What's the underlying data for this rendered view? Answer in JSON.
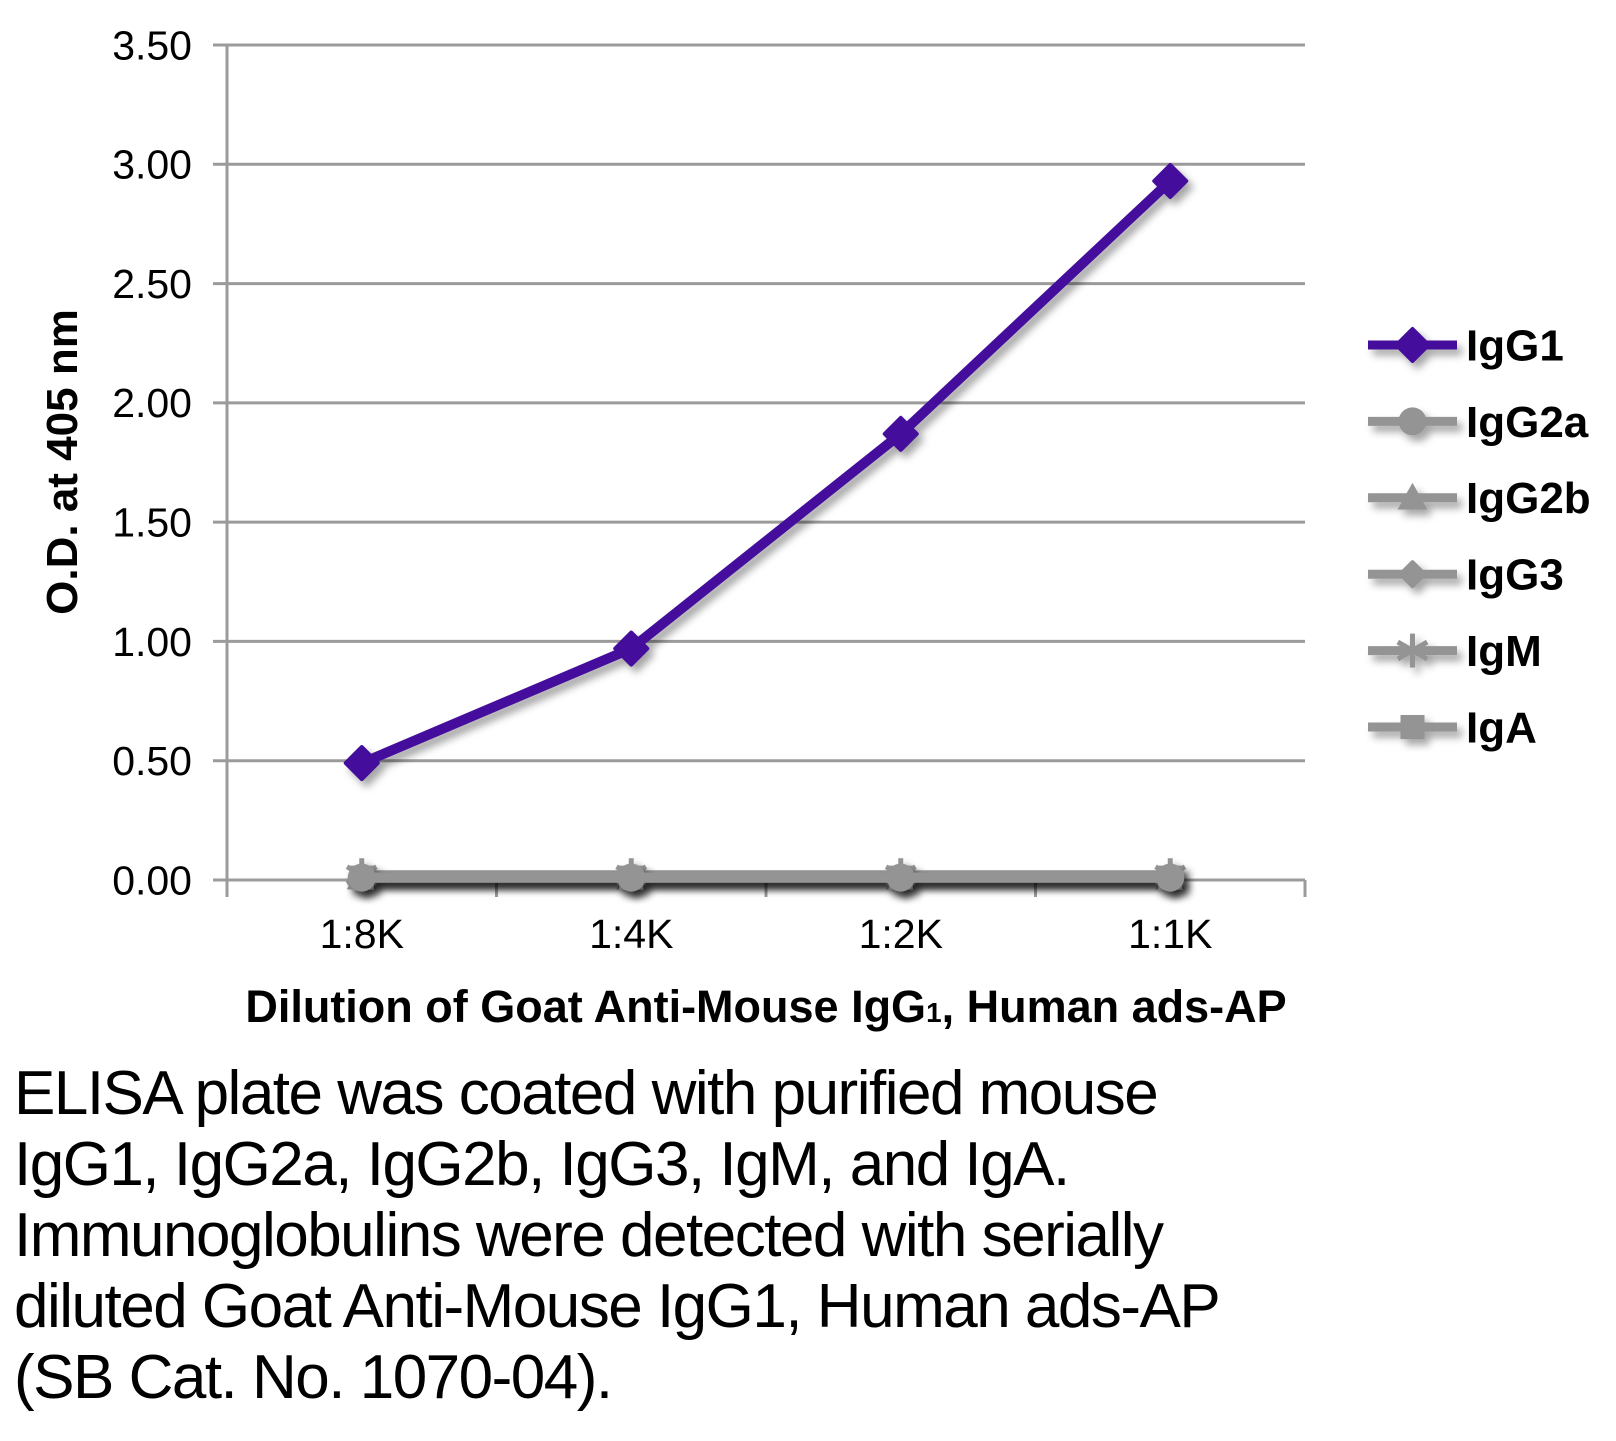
{
  "chart_data": {
    "type": "line",
    "title": "",
    "ylabel": "O.D. at 405 nm",
    "xlabel_parts": {
      "prefix": "Dilution of Goat Anti-Mouse IgG",
      "sub": "1",
      "suffix": ", Human ads-AP"
    },
    "categories": [
      "1:8K",
      "1:4K",
      "1:2K",
      "1:1K"
    ],
    "y_ticks": [
      "0.00",
      "0.50",
      "1.00",
      "1.50",
      "2.00",
      "2.50",
      "3.00",
      "3.50"
    ],
    "ylim": [
      0,
      3.5
    ],
    "grid": true,
    "legend_position": "right",
    "colors": {
      "accent_purple": "#44119b",
      "series_gray": "#949494",
      "gridline_gray": "#9b9b9b",
      "text_black": "#000000"
    },
    "series": [
      {
        "name": "IgG1",
        "color": "#44119b",
        "marker": "diamond",
        "values": [
          0.49,
          0.97,
          1.87,
          2.93
        ]
      },
      {
        "name": "IgG2a",
        "color": "#949494",
        "marker": "circle",
        "values": [
          0.01,
          0.01,
          0.01,
          0.01
        ]
      },
      {
        "name": "IgG2b",
        "color": "#949494",
        "marker": "triangle",
        "values": [
          0.01,
          0.01,
          0.01,
          0.01
        ]
      },
      {
        "name": "IgG3",
        "color": "#949494",
        "marker": "diamond-small",
        "values": [
          0.01,
          0.01,
          0.01,
          0.01
        ]
      },
      {
        "name": "IgM",
        "color": "#949494",
        "marker": "asterisk",
        "values": [
          0.02,
          0.02,
          0.02,
          0.02
        ]
      },
      {
        "name": "IgA",
        "color": "#949494",
        "marker": "square",
        "values": [
          0.01,
          0.01,
          0.01,
          0.01
        ]
      }
    ]
  },
  "caption": {
    "lines": [
      "ELISA plate was coated with purified mouse",
      "IgG1, IgG2a, IgG2b, IgG3, IgM, and IgA.",
      "Immunoglobulins were detected with serially",
      "diluted Goat Anti-Mouse IgG1, Human ads-AP",
      "(SB Cat. No. 1070-04)."
    ]
  }
}
